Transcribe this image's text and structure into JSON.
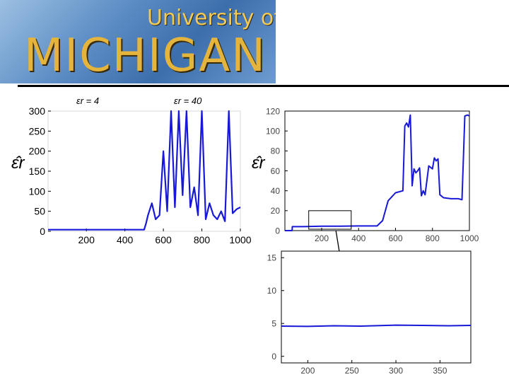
{
  "banner": {
    "line1": "University of",
    "line2": "MICHIGAN"
  },
  "chart_data": [
    {
      "type": "line",
      "annotations": [
        "εr = 4",
        "εr = 40"
      ],
      "ylabel": "ε̂r",
      "xlim": [
        1,
        1000
      ],
      "ylim": [
        0,
        300
      ],
      "xticks": [
        200,
        400,
        600,
        800,
        1000
      ],
      "yticks": [
        0,
        50,
        100,
        150,
        200,
        250,
        300
      ],
      "line_color": "#1818d8",
      "series": [
        {
          "x": [
            1,
            100,
            200,
            300,
            400,
            500,
            510,
            520,
            540,
            560,
            580,
            600,
            620,
            640,
            660,
            680,
            700,
            720,
            740,
            760,
            780,
            800,
            820,
            840,
            860,
            880,
            900,
            920,
            940,
            960,
            980,
            1000
          ],
          "y": [
            4,
            4,
            4,
            4,
            4,
            4,
            20,
            40,
            70,
            30,
            40,
            200,
            50,
            300,
            60,
            300,
            90,
            300,
            60,
            110,
            40,
            300,
            30,
            70,
            40,
            30,
            50,
            25,
            300,
            45,
            55,
            60
          ]
        }
      ]
    },
    {
      "type": "line",
      "ylabel": "ε̂r",
      "xlim": [
        1,
        1000
      ],
      "ylim": [
        0,
        120
      ],
      "xticks": [
        200,
        400,
        600,
        800,
        1000
      ],
      "yticks": [
        0,
        20,
        40,
        60,
        80,
        100,
        120
      ],
      "line_color": "#1818d8",
      "series": [
        {
          "x": [
            1,
            40,
            41,
            100,
            200,
            300,
            400,
            500,
            530,
            560,
            600,
            640,
            650,
            660,
            670,
            680,
            690,
            700,
            710,
            720,
            730,
            740,
            750,
            760,
            780,
            800,
            810,
            820,
            830,
            840,
            860,
            900,
            940,
            960,
            975,
            990,
            1000
          ],
          "y": [
            0,
            0,
            4,
            4,
            4.5,
            4.5,
            4.7,
            4.7,
            10,
            30,
            38,
            40,
            105,
            108,
            104,
            116,
            45,
            62,
            58,
            60,
            63,
            35,
            40,
            36,
            65,
            62,
            73,
            70,
            72,
            36,
            33,
            32,
            32,
            31,
            115,
            116,
            115
          ]
        }
      ]
    },
    {
      "type": "line",
      "xlim": [
        170,
        385
      ],
      "ylim": [
        -1,
        16
      ],
      "xticks": [
        200,
        250,
        300,
        350
      ],
      "yticks": [
        0,
        5,
        10,
        15
      ],
      "line_color": "#1818d8",
      "series": [
        {
          "x": [
            170,
            200,
            230,
            260,
            300,
            330,
            360,
            385
          ],
          "y": [
            4.6,
            4.55,
            4.65,
            4.6,
            4.75,
            4.7,
            4.65,
            4.7
          ]
        }
      ]
    }
  ]
}
